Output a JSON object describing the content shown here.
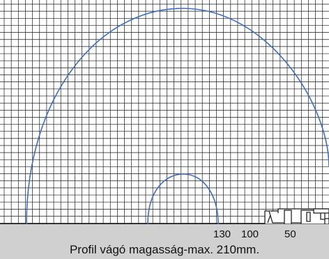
{
  "scale_labels": [
    "130",
    "100",
    "50"
  ],
  "caption": "Profil vágó magasság-max. 210mm.",
  "colors": {
    "grid": "#1a1a1a",
    "arc": "#3a6fc8",
    "footer_band": "#d0d0d0",
    "profile": "#222222"
  },
  "icons": {
    "profile_section": "window-profile-cross-section-icon"
  }
}
